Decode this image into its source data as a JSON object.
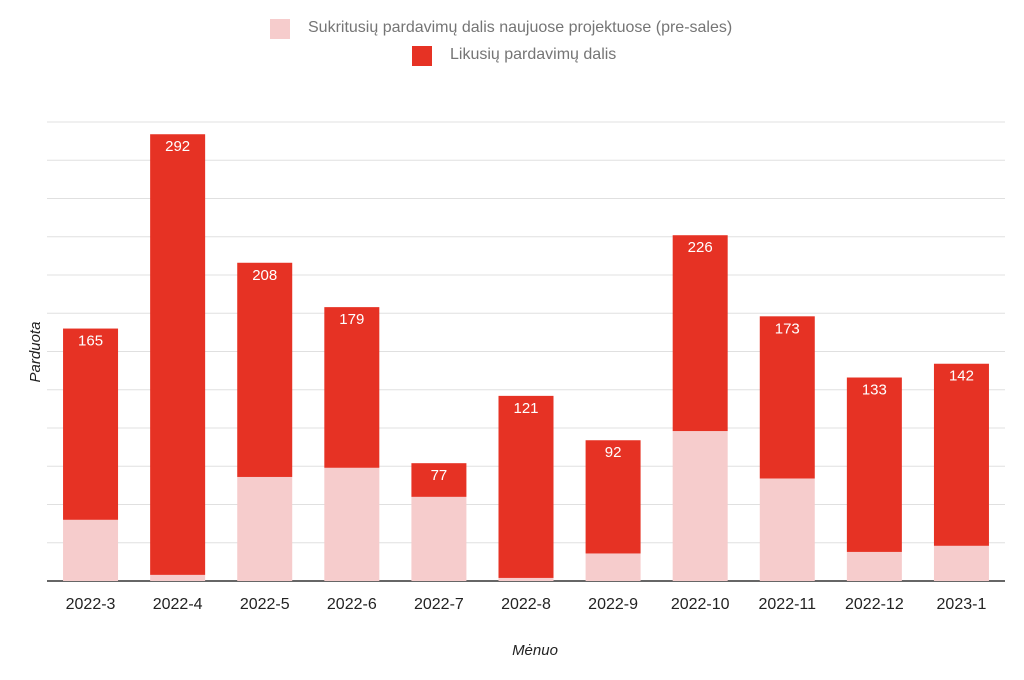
{
  "chart_data": {
    "type": "bar",
    "stacked": true,
    "title": "",
    "xlabel": "Mėnuo",
    "ylabel": "Parduota",
    "categories": [
      "2022-3",
      "2022-4",
      "2022-5",
      "2022-6",
      "2022-7",
      "2022-8",
      "2022-9",
      "2022-10",
      "2022-11",
      "2022-12",
      "2023-1"
    ],
    "series": [
      {
        "name": "Sukritusių pardavimų dalis naujuose projektuose (pre-sales)",
        "color": "#f6cccc",
        "values": [
          40,
          4,
          68,
          74,
          55,
          2,
          18,
          98,
          67,
          19,
          23
        ]
      },
      {
        "name": "Likusių pardavimų dalis",
        "color": "#e63224",
        "values": [
          125,
          288,
          140,
          105,
          22,
          119,
          74,
          128,
          106,
          114,
          119
        ]
      }
    ],
    "total_labels": [
      "165",
      "292",
      "208",
      "179",
      "77",
      "121",
      "92",
      "226",
      "173",
      "133",
      "142"
    ],
    "ylim": [
      0,
      300
    ],
    "grid_step": 25,
    "grid": true,
    "legend_position": "top-center"
  }
}
